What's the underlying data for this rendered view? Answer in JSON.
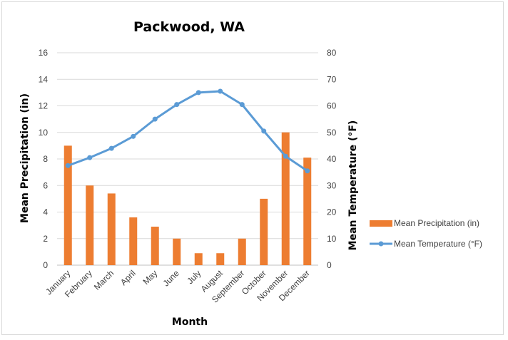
{
  "chart_data": {
    "type": "bar+line",
    "title": "Packwood, WA",
    "xlabel": "Month",
    "ylabel_left": "Mean Precipitation (in)",
    "ylabel_right": "Mean Temperature (°F)",
    "categories": [
      "January",
      "February",
      "March",
      "April",
      "May",
      "June",
      "July",
      "August",
      "September",
      "October",
      "November",
      "December"
    ],
    "ylim_left": [
      0,
      16
    ],
    "yticks_left": [
      0,
      2,
      4,
      6,
      8,
      10,
      12,
      14,
      16
    ],
    "ylim_right": [
      0,
      80
    ],
    "yticks_right": [
      0,
      10,
      20,
      30,
      40,
      50,
      60,
      70,
      80
    ],
    "grid": true,
    "legend_position": "right",
    "series": [
      {
        "name": "Mean Precipitation (in)",
        "kind": "bar",
        "axis": "left",
        "color": "#ED7D31",
        "values": [
          9.0,
          6.0,
          5.4,
          3.6,
          2.9,
          2.0,
          0.9,
          0.9,
          2.0,
          5.0,
          10.0,
          8.1
        ]
      },
      {
        "name": "Mean Temperature (°F)",
        "kind": "line",
        "axis": "right",
        "color": "#5B9BD5",
        "values": [
          37.5,
          40.5,
          44.0,
          48.5,
          55.0,
          60.5,
          65.0,
          65.5,
          60.5,
          50.5,
          41.0,
          35.5
        ]
      }
    ]
  }
}
